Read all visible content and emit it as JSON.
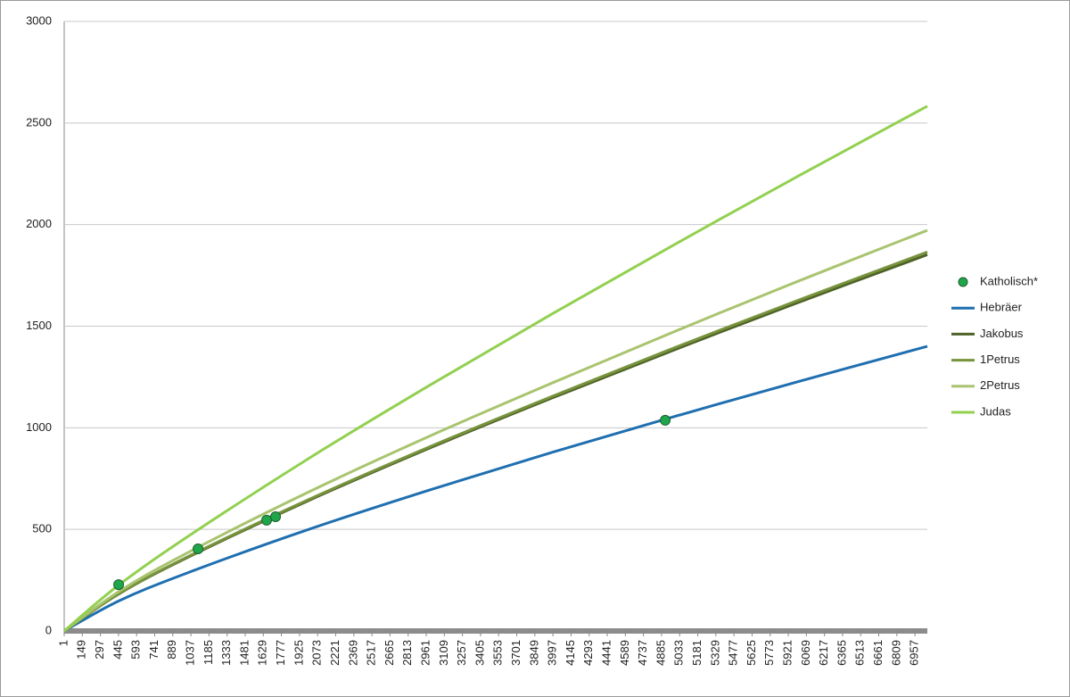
{
  "chart_data": {
    "type": "line",
    "x": [
      1,
      445,
      1000,
      2000,
      3000,
      4000,
      5000,
      6000,
      7058
    ],
    "xlim": [
      1,
      7058
    ],
    "xticks": [
      1,
      149,
      297,
      445,
      593,
      741,
      889,
      1037,
      1185,
      1333,
      1481,
      1629,
      1777,
      1925,
      2073,
      2221,
      2369,
      2517,
      2665,
      2813,
      2961,
      3109,
      3257,
      3405,
      3553,
      3701,
      3849,
      3997,
      4145,
      4293,
      4441,
      4589,
      4737,
      4885,
      5033,
      5181,
      5329,
      5477,
      5625,
      5773,
      5921,
      6069,
      6217,
      6365,
      6513,
      6661,
      6809,
      6957
    ],
    "ylim": [
      0,
      3000
    ],
    "yticks": [
      0,
      500,
      1000,
      1500,
      2000,
      2500,
      3000
    ],
    "grid": true,
    "legend": "right",
    "series": [
      {
        "name": "Katholisch*",
        "type": "scatter",
        "color": "#1fa64a",
        "x": [
          446,
          1095,
          1656,
          1729,
          4915
        ],
        "values": [
          228,
          404,
          545,
          562,
          1037
        ]
      },
      {
        "name": "Hebräer",
        "color": "#1f6fb0",
        "values": [
          0,
          147,
          284,
          500,
          696,
          881,
          1057,
          1227,
          1401
        ]
      },
      {
        "name": "Jakobus",
        "color": "#4f6228",
        "values": [
          0,
          181,
          359,
          642,
          903,
          1149,
          1386,
          1616,
          1852
        ]
      },
      {
        "name": "1Petrus",
        "color": "#77933c",
        "values": [
          0,
          182,
          362,
          647,
          909,
          1157,
          1396,
          1627,
          1865
        ]
      },
      {
        "name": "2Petrus",
        "color": "#a9c46f",
        "values": [
          0,
          193,
          382,
          684,
          962,
          1223,
          1476,
          1721,
          1972
        ]
      },
      {
        "name": "Judas",
        "color": "#92d050",
        "values": [
          0,
          225,
          460,
          849,
          1213,
          1564,
          1905,
          2238,
          2583
        ]
      }
    ]
  }
}
